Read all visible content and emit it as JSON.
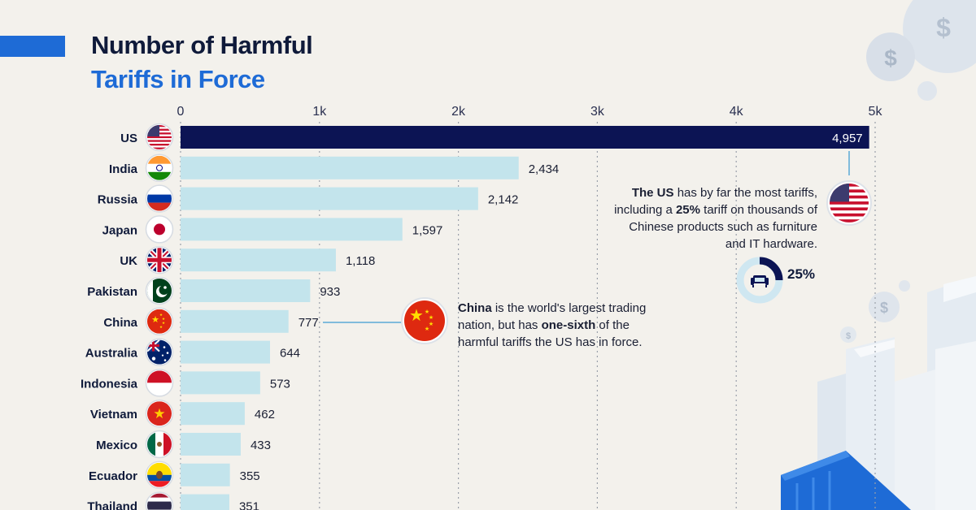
{
  "title": {
    "line1": "Number of Harmful",
    "line2": "Tariffs in Force"
  },
  "colors": {
    "highlight_bar": "#0c1454",
    "bar": "#c3e4ec",
    "accent": "#1e6bd6",
    "grid": "#9aa0aa"
  },
  "chart_data": {
    "type": "bar",
    "orientation": "horizontal",
    "title": "Number of Harmful Tariffs in Force",
    "xlabel": "",
    "ylabel": "",
    "xlim": [
      0,
      5000
    ],
    "ticks": [
      0,
      1000,
      2000,
      3000,
      4000,
      5000
    ],
    "tick_labels": [
      "0",
      "1k",
      "2k",
      "3k",
      "4k",
      "5k"
    ],
    "categories": [
      "US",
      "India",
      "Russia",
      "Japan",
      "UK",
      "Pakistan",
      "China",
      "Australia",
      "Indonesia",
      "Vietnam",
      "Mexico",
      "Ecuador",
      "Thailand"
    ],
    "values": [
      4957,
      2434,
      2142,
      1597,
      1118,
      933,
      777,
      644,
      573,
      462,
      433,
      355,
      351
    ],
    "value_labels": [
      "4,957",
      "2,434",
      "2,142",
      "1,597",
      "1,118",
      "933",
      "777",
      "644",
      "573",
      "462",
      "433",
      "355",
      "351"
    ],
    "grid": true
  },
  "annotations": {
    "us": {
      "bold": "The US",
      "text1": " has by far the most tariffs, including a ",
      "bold2": "25%",
      "text2": " tariff on thousands of Chinese products such as furniture and IT hardware."
    },
    "china": {
      "bold": "China",
      "text1": " is the world's largest trading nation, but has ",
      "bold2": "one-sixth",
      "text2": " of the harmful tariffs the US has in force."
    },
    "pct": "25%"
  },
  "icons": {
    "armchair": "armchair-icon",
    "dollar": "dollar-coin-icon"
  }
}
